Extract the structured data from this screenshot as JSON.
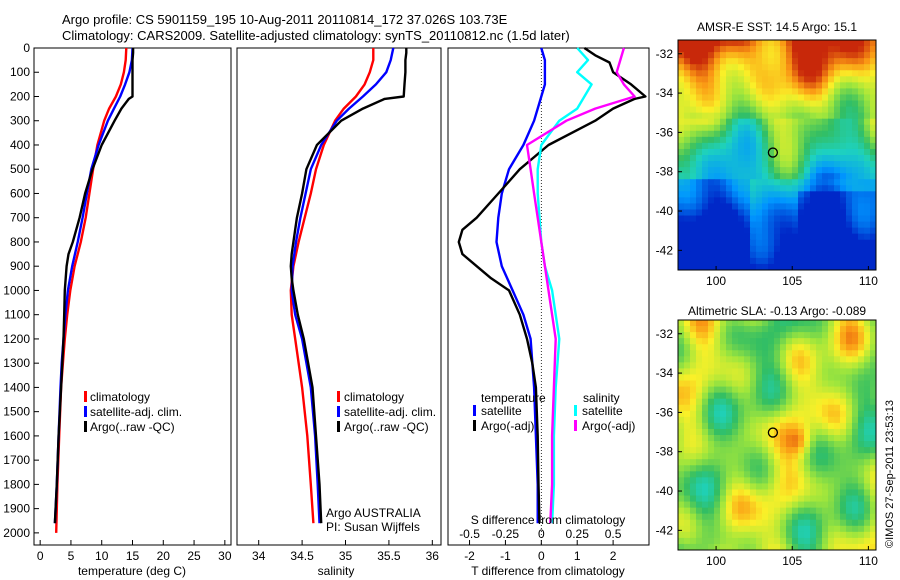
{
  "header": {
    "line1": "Argo profile: CS 5901159_195 10-Aug-2011 20110814_172 37.026S 103.73E",
    "line2": "Climatology: CARS2009. Satellite-adjusted climatology: synTS_20110812.nc (1.5d later)"
  },
  "colors": {
    "climatology": "#ff0000",
    "satellite": "#0000ff",
    "argo": "#000000",
    "argo_adj_sal": "#ff00ff",
    "satellite_sal": "#00ffff"
  },
  "chart_data": [
    {
      "type": "line",
      "id": "temperature",
      "xlabel": "temperature (deg C)",
      "xlim": [
        -1,
        31
      ],
      "ylim": [
        0,
        2050
      ],
      "xticks": [
        0,
        5,
        10,
        15,
        20,
        25,
        30
      ],
      "yticks": [
        0,
        100,
        200,
        300,
        400,
        500,
        600,
        700,
        800,
        900,
        1000,
        1100,
        1200,
        1300,
        1400,
        1500,
        1600,
        1700,
        1800,
        1900,
        2000
      ],
      "legend": [
        "climatology",
        "satellite-adj. clim.",
        "Argo(..raw -QC)"
      ],
      "series": [
        {
          "name": "climatology",
          "color": "#ff0000",
          "depth": [
            0,
            50,
            100,
            150,
            200,
            250,
            300,
            400,
            500,
            600,
            700,
            800,
            900,
            1000,
            1100,
            1200,
            1300,
            1400,
            1600,
            1800,
            2000
          ],
          "values": [
            14.0,
            13.9,
            13.6,
            13.1,
            12.3,
            11.2,
            10.4,
            9.3,
            8.6,
            8.0,
            7.4,
            6.6,
            5.6,
            4.9,
            4.4,
            4.0,
            3.7,
            3.4,
            3.1,
            2.8,
            2.6
          ]
        },
        {
          "name": "satellite-adj. clim.",
          "color": "#0000ff",
          "depth": [
            0,
            50,
            100,
            150,
            200,
            250,
            300,
            400,
            500,
            600,
            700,
            800,
            900,
            1000,
            1100,
            1200,
            1300,
            1400,
            1600,
            1800,
            1960
          ],
          "values": [
            15.0,
            14.9,
            14.5,
            13.8,
            13.0,
            12.0,
            11.0,
            9.5,
            8.3,
            7.6,
            6.9,
            6.1,
            5.2,
            4.5,
            4.1,
            3.8,
            3.5,
            3.3,
            3.0,
            2.7,
            2.4
          ]
        },
        {
          "name": "Argo(..raw -QC)",
          "color": "#000000",
          "depth": [
            0,
            20,
            50,
            100,
            150,
            200,
            210,
            250,
            300,
            400,
            500,
            600,
            700,
            800,
            850,
            900,
            1000,
            1100,
            1200,
            1300,
            1400,
            1600,
            1800,
            1960
          ],
          "values": [
            15.1,
            15.1,
            15.0,
            15.0,
            15.0,
            15.0,
            14.4,
            13.2,
            12.1,
            10.0,
            8.5,
            7.3,
            6.4,
            5.3,
            4.6,
            4.3,
            4.0,
            3.9,
            3.8,
            3.6,
            3.4,
            3.0,
            2.7,
            2.4
          ]
        }
      ]
    },
    {
      "type": "line",
      "id": "salinity",
      "xlabel": "salinity",
      "xlim": [
        33.75,
        36.1
      ],
      "ylim": [
        0,
        2050
      ],
      "xticks": [
        34,
        34.5,
        35,
        35.5,
        36
      ],
      "legend": [
        "climatology",
        "satellite-adj. clim.",
        "Argo(..raw -QC)"
      ],
      "annotation": [
        "Argo AUSTRALIA",
        "PI: Susan Wijffels"
      ],
      "series": [
        {
          "name": "climatology",
          "color": "#ff0000",
          "depth": [
            0,
            50,
            100,
            150,
            200,
            250,
            300,
            400,
            500,
            600,
            700,
            800,
            900,
            1000,
            1100,
            1200,
            1400,
            1600,
            1800,
            1960
          ],
          "values": [
            35.32,
            35.32,
            35.28,
            35.22,
            35.12,
            34.98,
            34.88,
            34.75,
            34.66,
            34.6,
            34.53,
            34.46,
            34.4,
            34.37,
            34.38,
            34.42,
            34.5,
            34.56,
            34.6,
            34.63
          ]
        },
        {
          "name": "satellite-adj. clim.",
          "color": "#0000ff",
          "depth": [
            0,
            50,
            100,
            150,
            200,
            250,
            300,
            400,
            500,
            600,
            700,
            800,
            900,
            1000,
            1100,
            1200,
            1400,
            1600,
            1800,
            1960
          ],
          "values": [
            35.55,
            35.52,
            35.47,
            35.35,
            35.2,
            35.04,
            34.9,
            34.72,
            34.6,
            34.54,
            34.48,
            34.43,
            34.39,
            34.38,
            34.42,
            34.5,
            34.6,
            34.65,
            34.68,
            34.7
          ]
        },
        {
          "name": "Argo(..raw -QC)",
          "color": "#000000",
          "depth": [
            0,
            20,
            50,
            100,
            150,
            200,
            210,
            250,
            300,
            400,
            500,
            600,
            700,
            800,
            850,
            900,
            950,
            1000,
            1100,
            1200,
            1400,
            1600,
            1800,
            1960
          ],
          "values": [
            35.7,
            35.7,
            35.69,
            35.69,
            35.68,
            35.67,
            35.45,
            35.2,
            34.95,
            34.67,
            34.55,
            34.5,
            34.44,
            34.4,
            34.38,
            34.37,
            34.38,
            34.4,
            34.45,
            34.52,
            34.62,
            34.66,
            34.7,
            34.72
          ]
        }
      ]
    },
    {
      "type": "line",
      "id": "difference",
      "xlabel": "T difference from climatology",
      "xlabel_top": "S difference from climatology",
      "xlim": [
        -2.6,
        3.0
      ],
      "ylim": [
        0,
        2050
      ],
      "xticks": [
        -2,
        -1,
        0,
        1,
        2
      ],
      "xticks_top": [
        -0.5,
        -0.25,
        0,
        0.25,
        0.5
      ],
      "xticklabels_top": [
        "-0.5",
        "-0.25",
        "0",
        "0.25",
        "0.5"
      ],
      "legend_temperature_title": "temperature",
      "legend_salinity_title": "salinity",
      "legend": [
        "satellite",
        "Argo(-adj)",
        "satellite",
        "Argo(-adj)"
      ],
      "series": [
        {
          "name": "T satellite",
          "color": "#0000ff",
          "depth": [
            0,
            50,
            100,
            150,
            200,
            250,
            300,
            400,
            500,
            600,
            700,
            800,
            900,
            1000,
            1100,
            1200,
            1400,
            1600,
            1800,
            1960
          ],
          "values": [
            0.0,
            0.1,
            0.1,
            0.1,
            0.0,
            -0.1,
            -0.2,
            -0.5,
            -0.9,
            -1.1,
            -1.2,
            -1.25,
            -1.1,
            -0.8,
            -0.5,
            -0.3,
            -0.2,
            -0.15,
            -0.1,
            -0.1
          ]
        },
        {
          "name": "T Argo(-adj)",
          "color": "#000000",
          "depth": [
            0,
            30,
            60,
            100,
            150,
            200,
            210,
            250,
            300,
            400,
            500,
            600,
            700,
            750,
            800,
            850,
            900,
            950,
            1000,
            1100,
            1200,
            1300,
            1400,
            1600,
            1800,
            1960
          ],
          "values": [
            1.2,
            1.5,
            1.9,
            2.0,
            2.5,
            2.9,
            2.6,
            2.0,
            1.5,
            0.2,
            -0.6,
            -1.2,
            -1.8,
            -2.2,
            -2.3,
            -2.2,
            -1.8,
            -1.4,
            -0.9,
            -0.6,
            -0.4,
            -0.25,
            -0.15,
            -0.1,
            -0.08,
            -0.05
          ]
        },
        {
          "name": "S satellite",
          "color": "#00ffff",
          "depth": [
            0,
            50,
            100,
            150,
            200,
            250,
            300,
            400,
            500,
            600,
            700,
            800,
            900,
            1000,
            1100,
            1200,
            1400,
            1600,
            1800,
            1960
          ],
          "values": [
            1.0,
            1.3,
            1.0,
            1.4,
            1.2,
            1.0,
            0.5,
            0.0,
            -0.1,
            -0.1,
            -0.05,
            0.0,
            0.1,
            0.3,
            0.4,
            0.5,
            0.4,
            0.35,
            0.35,
            0.3
          ]
        },
        {
          "name": "S Argo(-adj)",
          "color": "#ff00ff",
          "depth": [
            0,
            50,
            100,
            150,
            200,
            250,
            300,
            400,
            500,
            600,
            700,
            800,
            900,
            1000,
            1100,
            1200,
            1400,
            1600,
            1800,
            1960
          ],
          "values": [
            2.3,
            2.2,
            2.1,
            2.3,
            2.6,
            1.5,
            0.7,
            -0.4,
            -0.3,
            -0.2,
            -0.1,
            0.0,
            0.1,
            0.2,
            0.3,
            0.4,
            0.35,
            0.3,
            0.3,
            0.25
          ]
        }
      ]
    },
    {
      "type": "heatmap",
      "id": "sst",
      "title": "AMSR-E SST: 14.5  Argo: 15.1",
      "xlim": [
        97.5,
        110.5
      ],
      "ylim": [
        -43,
        -31.3
      ],
      "xticks": [
        100,
        105,
        110
      ],
      "yticks": [
        -32,
        -34,
        -36,
        -38,
        -40,
        -42
      ],
      "marker": {
        "lon": 103.73,
        "lat": -37.026
      }
    },
    {
      "type": "heatmap",
      "id": "sla",
      "title": "Altimetric SLA: -0.13  Argo: -0.089",
      "xlim": [
        97.5,
        110.5
      ],
      "ylim": [
        -43,
        -31.3
      ],
      "xticks": [
        100,
        105,
        110
      ],
      "yticks": [
        -32,
        -34,
        -36,
        -38,
        -40,
        -42
      ],
      "marker": {
        "lon": 103.73,
        "lat": -37.026
      }
    }
  ],
  "footer": {
    "stamp": "©IMOS 27-Sep-2011 23:53:13"
  }
}
